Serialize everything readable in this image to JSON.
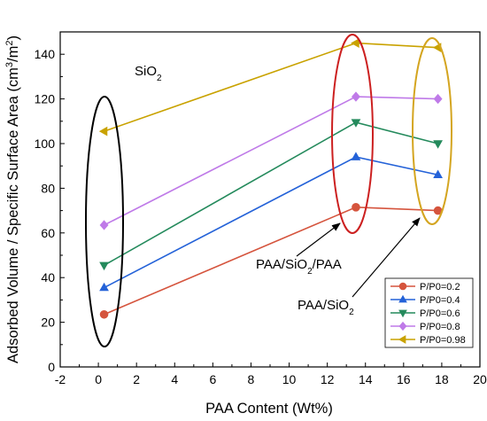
{
  "chart_data": {
    "type": "line",
    "xlabel": "PAA Content (Wt%)",
    "ylabel": "Adsorbed Volume / Specific Surface Area (cm³/m²)",
    "xlim": [
      -2,
      20
    ],
    "ylim": [
      0,
      150
    ],
    "xticks": [
      "-2",
      "0",
      "2",
      "4",
      "6",
      "8",
      "10",
      "12",
      "14",
      "16",
      "18",
      "20"
    ],
    "yticks": [
      "0",
      "20",
      "40",
      "60",
      "80",
      "100",
      "120",
      "140"
    ],
    "x": [
      0.3,
      13.5,
      17.8
    ],
    "series": [
      {
        "name": "P/P0=0.2",
        "values": [
          23.5,
          71.5,
          70
        ],
        "color": "#d5543d",
        "marker": "circle"
      },
      {
        "name": "P/P0=0.4",
        "values": [
          35.5,
          94,
          86
        ],
        "color": "#2462d8",
        "marker": "triangle-up"
      },
      {
        "name": "P/P0=0.6",
        "values": [
          45.5,
          109.5,
          100
        ],
        "color": "#248a5c",
        "marker": "triangle-down"
      },
      {
        "name": "P/P0=0.8",
        "values": [
          63.5,
          121,
          120
        ],
        "color": "#bf7ae8",
        "marker": "diamond"
      },
      {
        "name": "P/P0=0.98",
        "values": [
          105.5,
          145,
          143
        ],
        "color": "#c9a200",
        "marker": "triangle-left"
      }
    ],
    "annotations": [
      {
        "text": "SiO2",
        "pointer": "none",
        "x": 0.3
      },
      {
        "text": "PAA/SiO2/PAA",
        "pointer": "arrow",
        "x": 13.5
      },
      {
        "text": "PAA/SiO2",
        "pointer": "arrow",
        "x": 17.8
      }
    ],
    "ellipse_colors": [
      "#000000",
      "#cc2020",
      "#d4a520"
    ],
    "legend_position": "bottom-right",
    "grid": false
  }
}
